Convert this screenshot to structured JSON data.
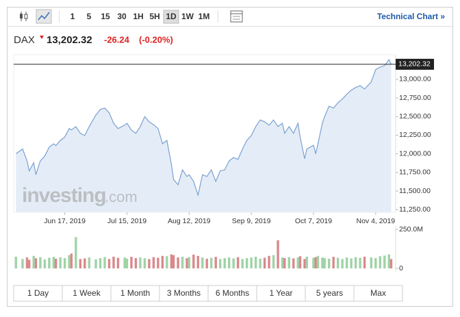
{
  "toolbar": {
    "intervals": [
      "1",
      "5",
      "15",
      "30",
      "1H",
      "5H",
      "1D",
      "1W",
      "1M"
    ],
    "active": "1D",
    "link": "Technical Chart »"
  },
  "header": {
    "symbol": "DAX",
    "price": "13,202.32",
    "change": "-26.24",
    "change_percent": "(-0.20%)"
  },
  "watermark": {
    "brand": "investing",
    "suffix": ".com"
  },
  "ranges": [
    "1 Day",
    "1 Week",
    "1 Month",
    "3 Months",
    "6 Months",
    "1 Year",
    "5 years",
    "Max"
  ],
  "chart_data": {
    "type": "area",
    "x": [
      "2019-05-26",
      "2019-05-29",
      "2019-05-31",
      "2019-06-01",
      "2019-06-03",
      "2019-06-04",
      "2019-06-06",
      "2019-06-08",
      "2019-06-10",
      "2019-06-12",
      "2019-06-13",
      "2019-06-15",
      "2019-06-17",
      "2019-06-19",
      "2019-06-20",
      "2019-06-22",
      "2019-06-24",
      "2019-06-26",
      "2019-06-28",
      "2019-07-01",
      "2019-07-03",
      "2019-07-05",
      "2019-07-07",
      "2019-07-09",
      "2019-07-11",
      "2019-07-14",
      "2019-07-15",
      "2019-07-17",
      "2019-07-19",
      "2019-07-21",
      "2019-07-23",
      "2019-07-25",
      "2019-07-27",
      "2019-07-29",
      "2019-07-31",
      "2019-08-02",
      "2019-08-04",
      "2019-08-05",
      "2019-08-07",
      "2019-08-09",
      "2019-08-11",
      "2019-08-12",
      "2019-08-14",
      "2019-08-16",
      "2019-08-18",
      "2019-08-20",
      "2019-08-22",
      "2019-08-24",
      "2019-08-26",
      "2019-08-28",
      "2019-08-30",
      "2019-09-01",
      "2019-09-03",
      "2019-09-05",
      "2019-09-07",
      "2019-09-09",
      "2019-09-11",
      "2019-09-13",
      "2019-09-15",
      "2019-09-17",
      "2019-09-19",
      "2019-09-21",
      "2019-09-23",
      "2019-09-24",
      "2019-09-26",
      "2019-09-28",
      "2019-09-30",
      "2019-10-01",
      "2019-10-03",
      "2019-10-04",
      "2019-10-07",
      "2019-10-08",
      "2019-10-09",
      "2019-10-11",
      "2019-10-12",
      "2019-10-14",
      "2019-10-16",
      "2019-10-18",
      "2019-10-20",
      "2019-10-22",
      "2019-10-24",
      "2019-10-26",
      "2019-10-28",
      "2019-10-30",
      "2019-11-02",
      "2019-11-04",
      "2019-11-06",
      "2019-11-08",
      "2019-11-10",
      "2019-11-11"
    ],
    "series": [
      {
        "name": "DAX",
        "color": "#7a9fd0",
        "fill": "#e4edf7",
        "values": [
          12000,
          12065,
          11905,
          11770,
          11880,
          11720,
          11905,
          11970,
          12090,
          12135,
          12110,
          12180,
          12225,
          12340,
          12320,
          12365,
          12275,
          12245,
          12365,
          12520,
          12595,
          12615,
          12550,
          12410,
          12340,
          12385,
          12410,
          12320,
          12275,
          12365,
          12500,
          12430,
          12390,
          12340,
          12135,
          12180,
          11860,
          11655,
          11585,
          11785,
          11695,
          11720,
          11630,
          11445,
          11720,
          11695,
          11785,
          11630,
          11770,
          11785,
          11905,
          11950,
          11925,
          12065,
          12180,
          12245,
          12365,
          12455,
          12430,
          12385,
          12455,
          12365,
          12410,
          12275,
          12365,
          12275,
          12410,
          12225,
          11935,
          12065,
          12115,
          12000,
          12135,
          12410,
          12500,
          12640,
          12615,
          12685,
          12735,
          12800,
          12855,
          12890,
          12915,
          12870,
          12965,
          13130,
          13165,
          13185,
          13265,
          13202.32
        ]
      },
      {
        "name": "Volume",
        "type": "bar",
        "axis": "y2",
        "up_color": "#9fd3a6",
        "down_color": "#d9898c",
        "values": [
          75000000,
          60000000,
          70000000,
          55000000,
          80000000,
          65000000,
          72000000,
          58000000,
          68000000,
          74000000,
          62000000,
          70000000,
          66000000,
          85000000,
          95000000,
          200000000,
          60000000,
          64000000,
          70000000,
          58000000,
          66000000,
          72000000,
          60000000,
          75000000,
          68000000,
          70000000,
          62000000,
          74000000,
          66000000,
          70000000,
          65000000,
          60000000,
          72000000,
          68000000,
          80000000,
          78000000,
          90000000,
          85000000,
          70000000,
          75000000,
          65000000,
          72000000,
          88000000,
          80000000,
          70000000,
          62000000,
          68000000,
          74000000,
          60000000,
          66000000,
          70000000,
          64000000,
          72000000,
          60000000,
          66000000,
          70000000,
          75000000,
          62000000,
          68000000,
          80000000,
          85000000,
          180000000,
          70000000,
          66000000,
          72000000,
          64000000,
          70000000,
          78000000,
          60000000,
          75000000,
          68000000,
          72000000,
          80000000,
          70000000,
          66000000,
          62000000,
          74000000,
          68000000,
          60000000,
          70000000,
          64000000,
          72000000,
          68000000,
          75000000,
          70000000,
          66000000,
          78000000,
          82000000,
          90000000,
          60000000
        ]
      }
    ],
    "current": {
      "value": 13202.32,
      "label": "13,202.32"
    },
    "xlim": [
      "2019-05-25",
      "2019-11-13"
    ],
    "xticks": [
      {
        "value": "2019-06-17",
        "label": "Jun 17, 2019"
      },
      {
        "value": "2019-07-15",
        "label": "Jul 15, 2019"
      },
      {
        "value": "2019-08-12",
        "label": "Aug 12, 2019"
      },
      {
        "value": "2019-09-09",
        "label": "Sep 9, 2019"
      },
      {
        "value": "2019-10-07",
        "label": "Oct 7, 2019"
      },
      {
        "value": "2019-11-04",
        "label": "Nov 4, 2019"
      }
    ],
    "ylim": [
      11215,
      13330
    ],
    "yticks": [
      {
        "value": 11250,
        "label": "11,250.00"
      },
      {
        "value": 11500,
        "label": "11,500.00"
      },
      {
        "value": 11750,
        "label": "11,750.00"
      },
      {
        "value": 12000,
        "label": "12,000.00"
      },
      {
        "value": 12250,
        "label": "12,250.00"
      },
      {
        "value": 12500,
        "label": "12,500.00"
      },
      {
        "value": 12750,
        "label": "12,750.00"
      },
      {
        "value": 13000,
        "label": "13,000.00"
      }
    ],
    "y2lim": [
      0,
      250000000
    ],
    "y2ticks": [
      {
        "value": 250000000,
        "label": "250.0M"
      },
      0
    ]
  }
}
